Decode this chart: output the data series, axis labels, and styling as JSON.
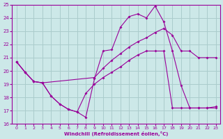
{
  "xlabel": "Windchill (Refroidissement éolien,°C)",
  "bg_color": "#cce8e8",
  "line_color": "#990099",
  "grid_color": "#aacccc",
  "xlim": [
    -0.5,
    23.5
  ],
  "ylim": [
    16,
    25
  ],
  "xticks": [
    0,
    1,
    2,
    3,
    4,
    5,
    6,
    7,
    8,
    9,
    10,
    11,
    12,
    13,
    14,
    15,
    16,
    17,
    18,
    19,
    20,
    21,
    22,
    23
  ],
  "yticks": [
    16,
    17,
    18,
    19,
    20,
    21,
    22,
    23,
    24,
    25
  ],
  "line1_x": [
    0,
    1,
    2,
    3,
    4,
    5,
    6,
    7,
    8,
    9,
    10,
    11,
    12,
    13,
    14,
    15,
    16,
    17,
    18,
    19,
    20,
    21,
    22,
    23
  ],
  "line1_y": [
    20.7,
    19.9,
    19.2,
    19.1,
    18.1,
    17.5,
    17.1,
    16.9,
    16.5,
    19.4,
    21.5,
    21.6,
    23.3,
    24.1,
    24.3,
    24.0,
    24.9,
    23.7,
    21.5,
    18.9,
    17.2,
    17.2,
    17.2,
    17.3
  ],
  "line2_x": [
    0,
    1,
    2,
    3,
    9,
    10,
    11,
    12,
    13,
    14,
    15,
    16,
    17,
    18,
    19,
    20,
    21,
    22,
    23
  ],
  "line2_y": [
    20.7,
    19.9,
    19.2,
    19.1,
    19.5,
    20.2,
    20.8,
    21.3,
    21.8,
    22.2,
    22.5,
    22.9,
    23.2,
    22.7,
    21.5,
    21.5,
    21.0,
    21.0,
    21.0
  ],
  "line3_x": [
    0,
    1,
    2,
    3,
    4,
    5,
    6,
    7,
    8,
    9,
    10,
    11,
    12,
    13,
    14,
    15,
    16,
    17,
    18,
    19,
    20,
    21,
    22,
    23
  ],
  "line3_y": [
    20.7,
    19.9,
    19.2,
    19.1,
    18.1,
    17.5,
    17.1,
    16.9,
    18.3,
    19.0,
    19.5,
    19.9,
    20.3,
    20.8,
    21.2,
    21.5,
    21.5,
    21.5,
    17.2,
    17.2,
    17.2,
    17.2,
    17.2,
    17.2
  ]
}
